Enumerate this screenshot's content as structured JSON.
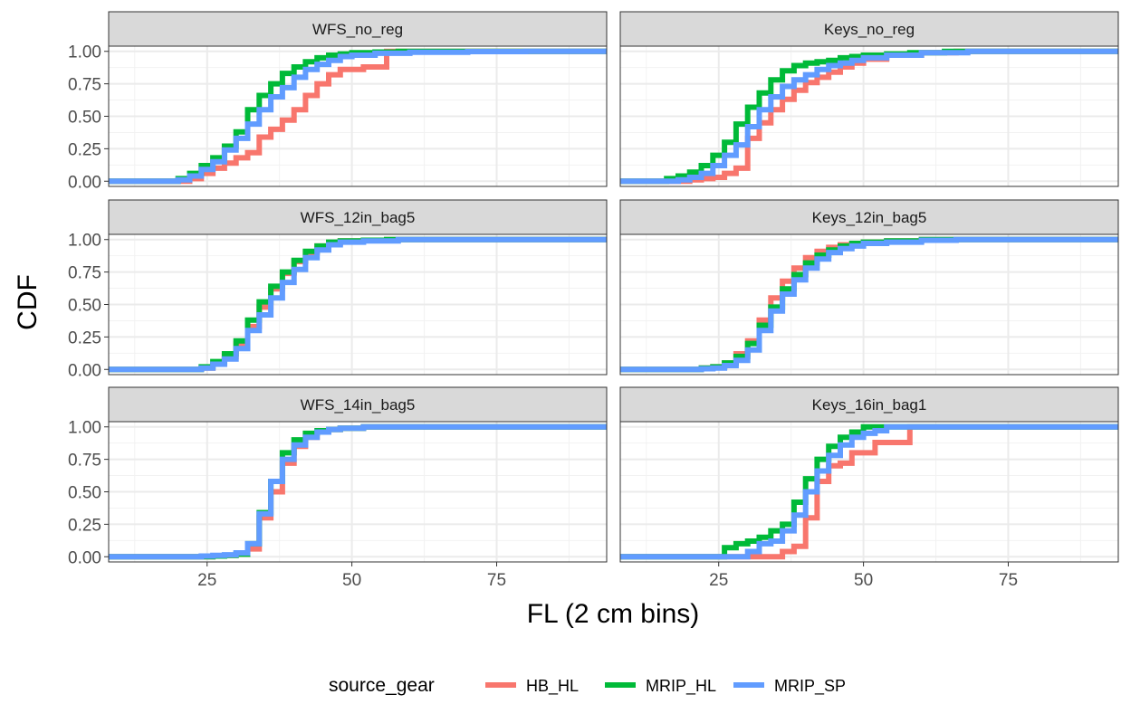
{
  "chart_data": {
    "type": "line",
    "step": true,
    "xlabel": "FL (2 cm bins)",
    "ylabel": "CDF",
    "xlim": [
      8,
      94
    ],
    "ylim": [
      -0.04,
      1.04
    ],
    "x_ticks": [
      "25",
      "50",
      "75"
    ],
    "x_tick_values": [
      25,
      50,
      75
    ],
    "y_ticks": [
      "0.00",
      "0.25",
      "0.50",
      "0.75",
      "1.00"
    ],
    "y_tick_values": [
      0,
      0.25,
      0.5,
      0.75,
      1
    ],
    "grid": true,
    "legend": {
      "title": "source_gear",
      "position": "bottom",
      "entries": [
        {
          "name": "HB_HL",
          "color": "#F8766D"
        },
        {
          "name": "MRIP_HL",
          "color": "#00BA38"
        },
        {
          "name": "MRIP_SP",
          "color": "#619CFF"
        }
      ]
    },
    "facet_labels": [
      "WFS_no_reg",
      "Keys_no_reg",
      "WFS_12in_bag5",
      "Keys_12in_bag5",
      "WFS_14in_bag5",
      "Keys_16in_bag1"
    ],
    "panels": [
      {
        "label": "WFS_no_reg",
        "series": [
          {
            "name": "HB_HL",
            "x": [
              8,
              22,
              24,
              26,
              28,
              30,
              32,
              34,
              36,
              38,
              40,
              42,
              44,
              46,
              48,
              50,
              52,
              54,
              56
            ],
            "y": [
              0,
              0.02,
              0.06,
              0.1,
              0.14,
              0.18,
              0.22,
              0.34,
              0.4,
              0.47,
              0.55,
              0.66,
              0.75,
              0.82,
              0.86,
              0.86,
              0.88,
              0.88,
              1.0
            ]
          },
          {
            "name": "MRIP_HL",
            "x": [
              8,
              20,
              22,
              24,
              26,
              28,
              30,
              32,
              34,
              36,
              38,
              40,
              42,
              44,
              46,
              48,
              50,
              54,
              58
            ],
            "y": [
              0,
              0.02,
              0.06,
              0.12,
              0.18,
              0.27,
              0.38,
              0.55,
              0.66,
              0.75,
              0.83,
              0.88,
              0.92,
              0.95,
              0.97,
              0.98,
              0.99,
              0.995,
              1.0
            ]
          },
          {
            "name": "MRIP_SP",
            "x": [
              8,
              20,
              22,
              24,
              26,
              28,
              30,
              32,
              34,
              36,
              38,
              40,
              42,
              44,
              46,
              48,
              50,
              54,
              60,
              70,
              80
            ],
            "y": [
              0,
              0.01,
              0.04,
              0.09,
              0.15,
              0.24,
              0.33,
              0.44,
              0.55,
              0.65,
              0.72,
              0.8,
              0.86,
              0.9,
              0.93,
              0.96,
              0.97,
              0.985,
              0.993,
              0.998,
              1.0
            ]
          }
        ]
      },
      {
        "label": "Keys_no_reg",
        "series": [
          {
            "name": "HB_HL",
            "x": [
              8,
              20,
              22,
              24,
              26,
              28,
              30,
              32,
              34,
              36,
              38,
              40,
              42,
              44,
              46,
              48,
              50,
              54,
              60,
              66
            ],
            "y": [
              0,
              0.01,
              0.02,
              0.03,
              0.06,
              0.1,
              0.33,
              0.45,
              0.55,
              0.63,
              0.7,
              0.76,
              0.8,
              0.84,
              0.88,
              0.91,
              0.94,
              0.97,
              0.99,
              1.0
            ]
          },
          {
            "name": "MRIP_HL",
            "x": [
              8,
              16,
              18,
              20,
              22,
              24,
              26,
              28,
              30,
              32,
              34,
              36,
              38,
              40,
              42,
              44,
              46,
              48,
              50,
              54,
              58,
              64
            ],
            "y": [
              0,
              0.02,
              0.04,
              0.07,
              0.12,
              0.2,
              0.3,
              0.44,
              0.57,
              0.68,
              0.78,
              0.85,
              0.89,
              0.91,
              0.92,
              0.93,
              0.95,
              0.96,
              0.97,
              0.98,
              0.99,
              1.0
            ]
          },
          {
            "name": "MRIP_SP",
            "x": [
              8,
              18,
              20,
              22,
              24,
              26,
              28,
              30,
              32,
              34,
              36,
              38,
              40,
              42,
              44,
              46,
              48,
              50,
              54,
              60,
              68
            ],
            "y": [
              0,
              0.01,
              0.03,
              0.06,
              0.12,
              0.2,
              0.28,
              0.42,
              0.55,
              0.65,
              0.73,
              0.78,
              0.82,
              0.86,
              0.89,
              0.91,
              0.93,
              0.95,
              0.97,
              0.99,
              1.0
            ]
          }
        ]
      },
      {
        "label": "WFS_12in_bag5",
        "series": [
          {
            "name": "HB_HL",
            "x": [
              8,
              24,
              26,
              28,
              30,
              32,
              34,
              36,
              38,
              40,
              42,
              44,
              46,
              48,
              52,
              56
            ],
            "y": [
              0,
              0.01,
              0.04,
              0.1,
              0.2,
              0.33,
              0.48,
              0.62,
              0.74,
              0.83,
              0.9,
              0.95,
              0.97,
              0.99,
              0.995,
              1.0
            ]
          },
          {
            "name": "MRIP_HL",
            "x": [
              8,
              24,
              26,
              28,
              30,
              32,
              34,
              36,
              38,
              40,
              42,
              44,
              46,
              48,
              52,
              56
            ],
            "y": [
              0,
              0.02,
              0.06,
              0.12,
              0.22,
              0.38,
              0.52,
              0.64,
              0.75,
              0.84,
              0.91,
              0.95,
              0.98,
              0.99,
              0.995,
              1.0
            ]
          },
          {
            "name": "MRIP_SP",
            "x": [
              8,
              24,
              26,
              28,
              30,
              32,
              34,
              36,
              38,
              40,
              42,
              44,
              46,
              48,
              52,
              58
            ],
            "y": [
              0,
              0.01,
              0.04,
              0.08,
              0.16,
              0.3,
              0.42,
              0.55,
              0.67,
              0.77,
              0.86,
              0.92,
              0.96,
              0.98,
              0.99,
              1.0
            ]
          }
        ]
      },
      {
        "label": "Keys_12in_bag5",
        "series": [
          {
            "name": "HB_HL",
            "x": [
              8,
              22,
              24,
              26,
              28,
              30,
              32,
              34,
              36,
              38,
              40,
              42,
              44,
              46,
              48,
              50,
              54,
              60
            ],
            "y": [
              0,
              0.01,
              0.02,
              0.05,
              0.12,
              0.22,
              0.38,
              0.55,
              0.68,
              0.78,
              0.86,
              0.91,
              0.94,
              0.96,
              0.97,
              0.98,
              0.99,
              1.0
            ]
          },
          {
            "name": "MRIP_HL",
            "x": [
              8,
              22,
              24,
              26,
              28,
              30,
              32,
              34,
              36,
              38,
              40,
              42,
              44,
              46,
              48,
              50,
              54,
              60
            ],
            "y": [
              0,
              0.01,
              0.02,
              0.05,
              0.1,
              0.2,
              0.34,
              0.48,
              0.62,
              0.73,
              0.82,
              0.88,
              0.92,
              0.95,
              0.97,
              0.98,
              0.99,
              1.0
            ]
          },
          {
            "name": "MRIP_SP",
            "x": [
              8,
              22,
              24,
              26,
              28,
              30,
              32,
              34,
              36,
              38,
              40,
              42,
              44,
              46,
              48,
              50,
              54,
              60,
              66
            ],
            "y": [
              0,
              0.005,
              0.01,
              0.03,
              0.07,
              0.15,
              0.3,
              0.45,
              0.58,
              0.69,
              0.78,
              0.85,
              0.9,
              0.93,
              0.95,
              0.97,
              0.98,
              0.995,
              1.0
            ]
          }
        ]
      },
      {
        "label": "WFS_14in_bag5",
        "series": [
          {
            "name": "HB_HL",
            "x": [
              8,
              26,
              28,
              30,
              32,
              34,
              36,
              38,
              40,
              42,
              44,
              46,
              48,
              52
            ],
            "y": [
              0,
              0.005,
              0.01,
              0.02,
              0.06,
              0.3,
              0.5,
              0.72,
              0.85,
              0.92,
              0.96,
              0.98,
              0.99,
              1.0
            ]
          },
          {
            "name": "MRIP_HL",
            "x": [
              8,
              26,
              28,
              30,
              32,
              34,
              36,
              38,
              40,
              42,
              44,
              46,
              48,
              52
            ],
            "y": [
              0,
              0.005,
              0.01,
              0.02,
              0.1,
              0.34,
              0.58,
              0.8,
              0.9,
              0.95,
              0.97,
              0.98,
              0.99,
              1.0
            ]
          },
          {
            "name": "MRIP_SP",
            "x": [
              8,
              24,
              26,
              28,
              30,
              32,
              34,
              36,
              38,
              40,
              42,
              44,
              46,
              48,
              52
            ],
            "y": [
              0,
              0.005,
              0.01,
              0.015,
              0.03,
              0.1,
              0.33,
              0.58,
              0.75,
              0.86,
              0.92,
              0.96,
              0.98,
              0.99,
              1.0
            ]
          }
        ]
      },
      {
        "label": "Keys_16in_bag1",
        "series": [
          {
            "name": "HB_HL",
            "x": [
              8,
              36,
              38,
              40,
              42,
              44,
              46,
              48,
              50,
              52,
              54,
              58
            ],
            "y": [
              0,
              0.04,
              0.08,
              0.3,
              0.58,
              0.7,
              0.72,
              0.8,
              0.8,
              0.88,
              0.88,
              1.0
            ]
          },
          {
            "name": "MRIP_HL",
            "x": [
              8,
              26,
              28,
              30,
              32,
              34,
              36,
              38,
              40,
              42,
              44,
              46,
              48,
              50
            ],
            "y": [
              0,
              0.07,
              0.1,
              0.12,
              0.15,
              0.2,
              0.25,
              0.42,
              0.6,
              0.75,
              0.85,
              0.92,
              0.96,
              1.0
            ]
          },
          {
            "name": "MRIP_SP",
            "x": [
              8,
              30,
              32,
              34,
              36,
              38,
              40,
              42,
              44,
              46,
              48,
              50,
              52,
              54
            ],
            "y": [
              0,
              0.04,
              0.1,
              0.12,
              0.2,
              0.32,
              0.5,
              0.66,
              0.78,
              0.86,
              0.92,
              0.95,
              0.97,
              1.0
            ]
          }
        ]
      }
    ]
  }
}
